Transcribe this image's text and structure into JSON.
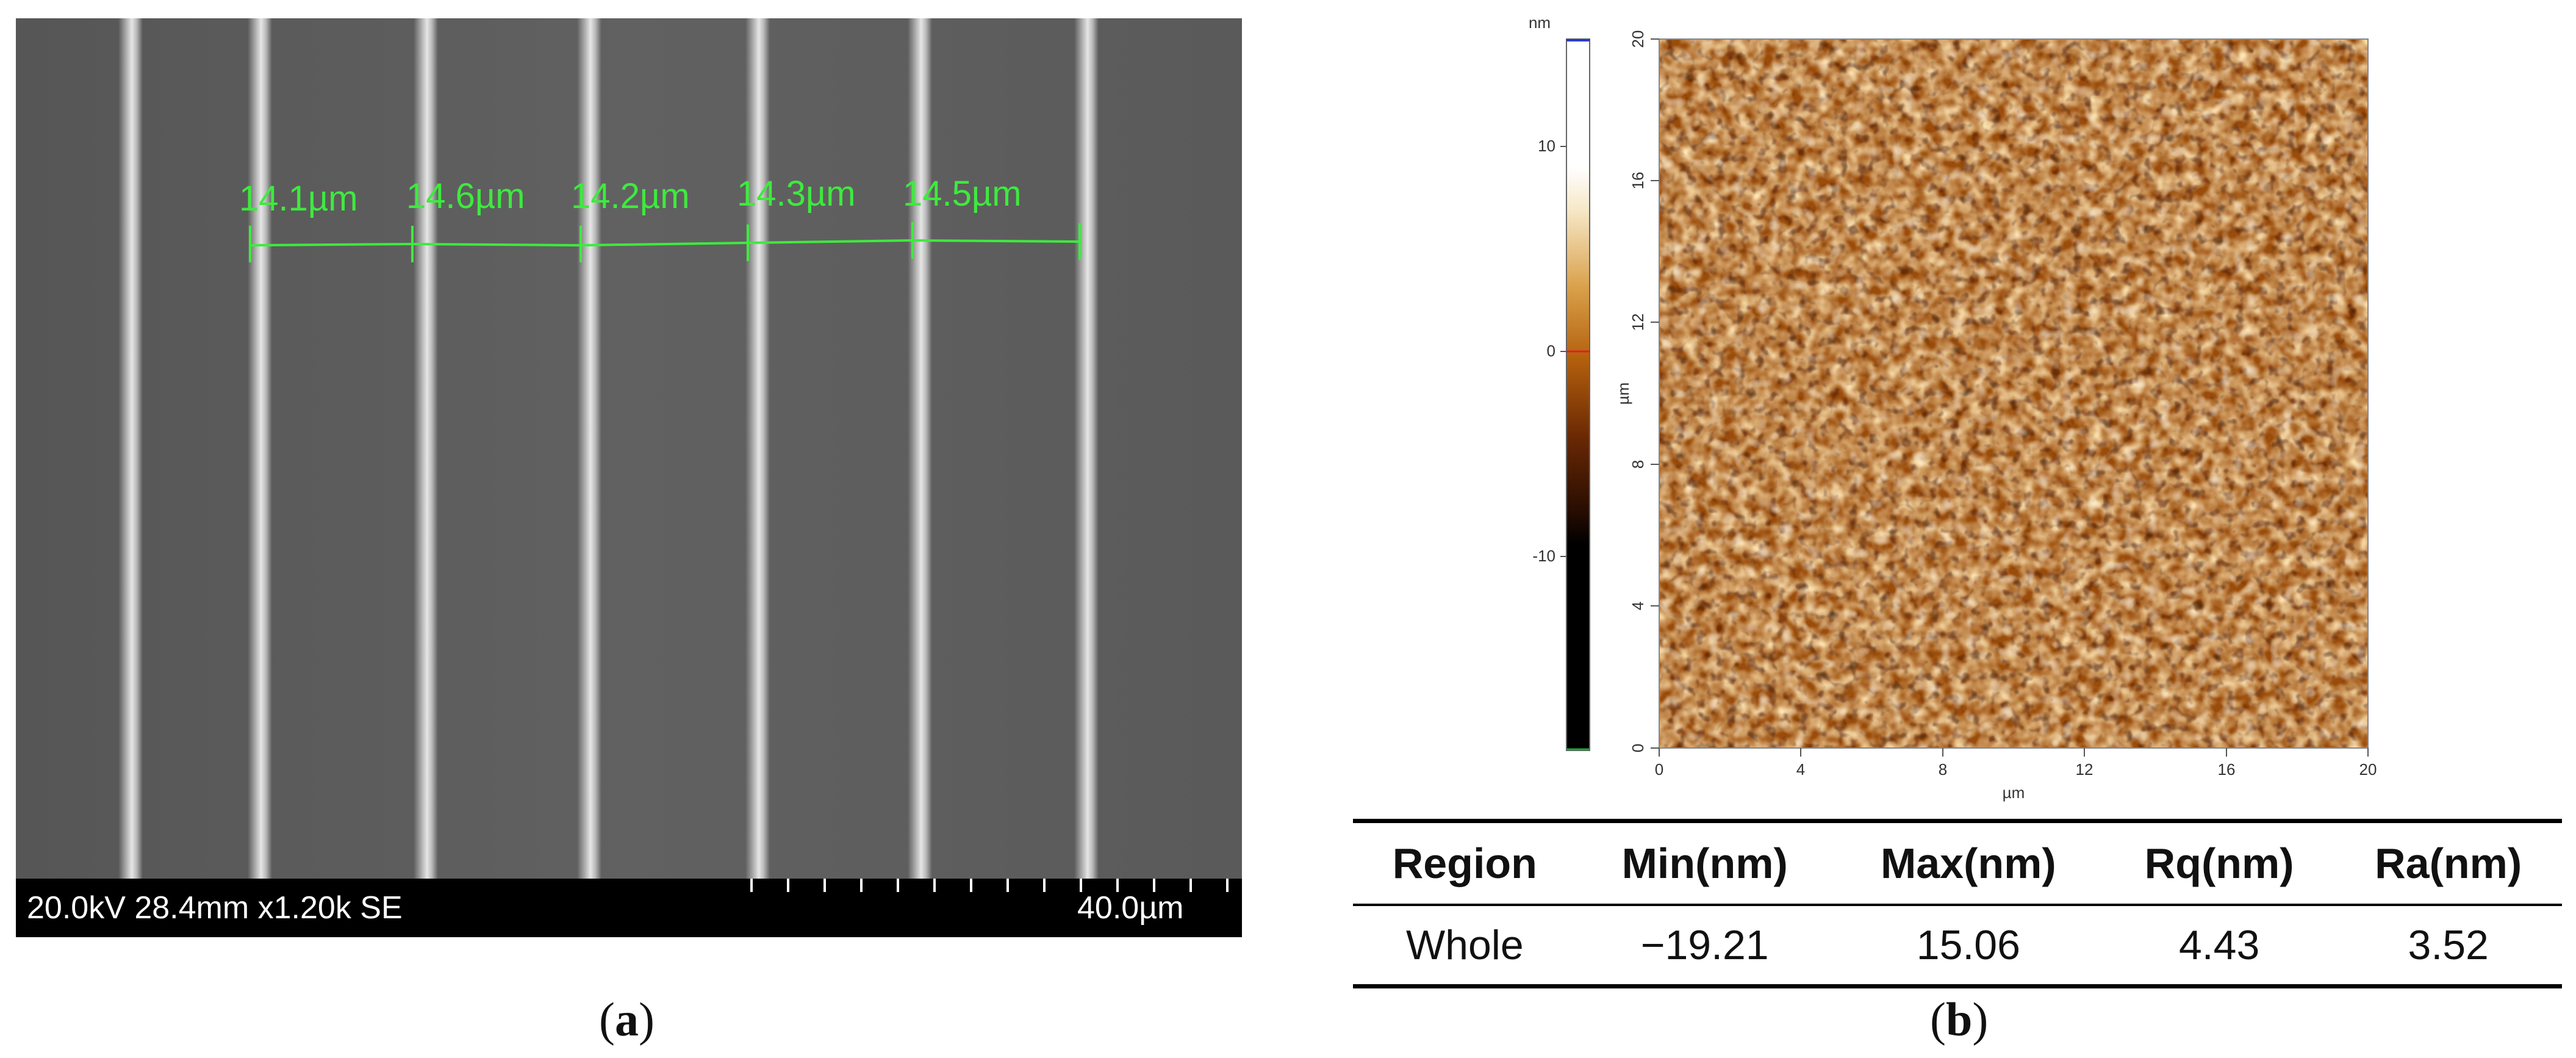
{
  "panel_a": {
    "caption_letter": "a",
    "sem_info": "20.0kV 28.4mm x1.20k SE",
    "scale_bar_label": "40.0µm",
    "measurements": [
      "14.1µm",
      "14.6µm",
      "14.2µm",
      "14.3µm",
      "14.5µm"
    ]
  },
  "panel_b": {
    "caption_letter": "b",
    "afm": {
      "colorbar_unit": "nm",
      "colorbar_ticks": [
        "10",
        "0",
        "-10"
      ],
      "x_ticks": [
        "0",
        "4",
        "8",
        "12",
        "16",
        "20"
      ],
      "y_ticks": [
        "0",
        "4",
        "8",
        "12",
        "16",
        "20"
      ],
      "x_label": "µm",
      "y_label": "µm"
    },
    "table": {
      "headers": [
        "Region",
        "Min(nm)",
        "Max(nm)",
        "Rq(nm)",
        "Ra(nm)"
      ],
      "rows": [
        [
          "Whole",
          "−19.21",
          "15.06",
          "4.43",
          "3.52"
        ]
      ]
    }
  },
  "colors": {
    "measurement_green": "#3eea3e",
    "afm_dark": "#2a0e02",
    "afm_mid": "#b3600d",
    "afm_light": "#fff3dc"
  }
}
